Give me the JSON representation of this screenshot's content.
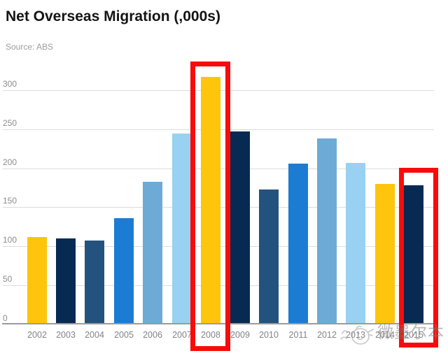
{
  "header": {
    "title": "Net Overseas Migration (,000s)",
    "source": "Source: ABS"
  },
  "watermark": {
    "text": "微墨尔本",
    "icon": "bird-doodle-icon"
  },
  "chart_data": {
    "type": "bar",
    "title": "Net Overseas Migration (,000s)",
    "source": "Source: ABS",
    "xlabel": "",
    "ylabel": "",
    "ylim": [
      0,
      320
    ],
    "yticks": [
      0,
      50,
      100,
      150,
      200,
      250,
      300
    ],
    "grid": true,
    "legend": "none",
    "categories": [
      "2002",
      "2003",
      "2004",
      "2005",
      "2006",
      "2007",
      "2008",
      "2009",
      "2010",
      "2011",
      "2012",
      "2013",
      "2014",
      "2015"
    ],
    "values": [
      112,
      110,
      107,
      136,
      183,
      245,
      317,
      247,
      173,
      206,
      238,
      207,
      180,
      178
    ],
    "color_keys": [
      "gold",
      "navy",
      "steel",
      "bright",
      "medium",
      "light",
      "gold",
      "navy",
      "steel",
      "bright",
      "medium",
      "light",
      "gold",
      "navy"
    ],
    "palette": {
      "gold": "#FFC40C",
      "navy": "#072A52",
      "steel": "#24527E",
      "bright": "#1C7CD4",
      "medium": "#6DABD6",
      "light": "#98D1F1"
    },
    "highlighted_categories": [
      "2008",
      "2015"
    ],
    "highlight_color": "#F90B0B",
    "axis_color": "#9B9B9B",
    "grid_color": "#DCDCDC",
    "tick_label_color": "#8C8C8C"
  }
}
